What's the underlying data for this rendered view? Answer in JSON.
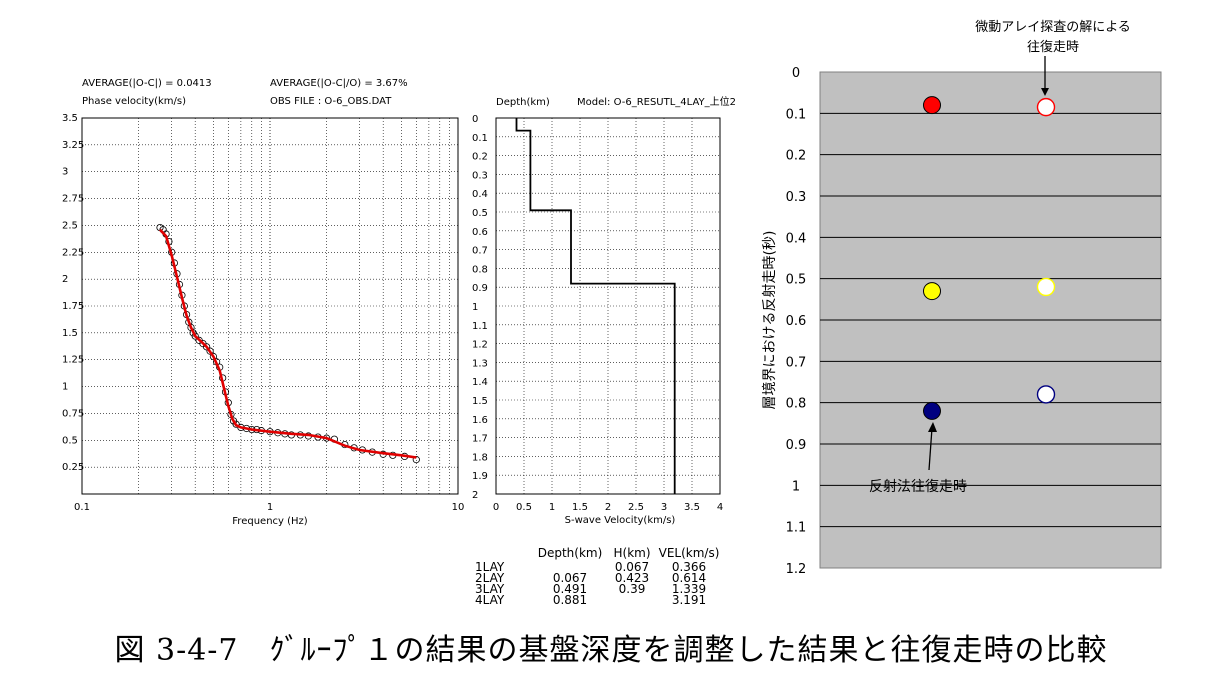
{
  "caption": "図 3-4-7　ｸﾞﾙｰﾌﾟ１の結果の基盤深度を調整した結果と往復走時の比較",
  "colors": {
    "fit_line": "#e00000",
    "plot_bg": "#c0c0c0",
    "red": "#ff0000",
    "yellow": "#ffff00",
    "navy": "#000080"
  },
  "chart_data": [
    {
      "type": "scatter",
      "header": {
        "avg_abs": "AVERAGE(|O-C|) = 0.0413",
        "avg_rel": "AVERAGE(|O-C|/O) = 3.67%",
        "ylabel": "Phase velocity(km/s)",
        "obs_file": "OBS FILE : O-6_OBS.DAT"
      },
      "xlabel": "Frequency (Hz)",
      "xscale": "log",
      "xlim": [
        0.1,
        10
      ],
      "ylim": [
        0,
        3.5
      ],
      "x_ticks": [
        "0.1",
        "1",
        "10"
      ],
      "y_ticks": [
        "3.5",
        "3.25",
        "3",
        "2.75",
        "2.5",
        "2.25",
        "2",
        "1.75",
        "1.5",
        "1.25",
        "1",
        "0.75",
        "0.5",
        "0.25"
      ],
      "series": [
        {
          "x": [
            0.26,
            0.27,
            0.28,
            0.29,
            0.3,
            0.31,
            0.32,
            0.33,
            0.34,
            0.35,
            0.36,
            0.37,
            0.38,
            0.39,
            0.4,
            0.42,
            0.44,
            0.46,
            0.48,
            0.5,
            0.52,
            0.54,
            0.56,
            0.58,
            0.6,
            0.62,
            0.64,
            0.66,
            0.7,
            0.75,
            0.8,
            0.85,
            0.9,
            1.0,
            1.1,
            1.2,
            1.3,
            1.45,
            1.6,
            1.8,
            2.0,
            2.2,
            2.5,
            2.8,
            3.1,
            3.5,
            4.0,
            4.5,
            5.2,
            6.0
          ],
          "y": [
            2.48,
            2.46,
            2.42,
            2.35,
            2.25,
            2.15,
            2.05,
            1.95,
            1.85,
            1.75,
            1.67,
            1.6,
            1.55,
            1.5,
            1.47,
            1.43,
            1.4,
            1.37,
            1.33,
            1.28,
            1.23,
            1.18,
            1.08,
            0.95,
            0.85,
            0.74,
            0.68,
            0.65,
            0.62,
            0.61,
            0.6,
            0.6,
            0.59,
            0.58,
            0.57,
            0.56,
            0.55,
            0.55,
            0.54,
            0.53,
            0.52,
            0.51,
            0.46,
            0.43,
            0.41,
            0.39,
            0.37,
            0.36,
            0.35,
            0.32
          ]
        },
        {
          "x": [
            0.26,
            0.28,
            0.3,
            0.32,
            0.34,
            0.36,
            0.38,
            0.4,
            0.43,
            0.46,
            0.5,
            0.54,
            0.57,
            0.6,
            0.63,
            0.66,
            0.7,
            0.8,
            1.0,
            1.3,
            1.6,
            2.0,
            2.5,
            3.0,
            4.0,
            5.0,
            6.0
          ],
          "y": [
            2.46,
            2.4,
            2.22,
            2.02,
            1.83,
            1.66,
            1.55,
            1.47,
            1.42,
            1.37,
            1.28,
            1.15,
            0.98,
            0.82,
            0.7,
            0.64,
            0.62,
            0.6,
            0.58,
            0.56,
            0.55,
            0.52,
            0.45,
            0.41,
            0.38,
            0.36,
            0.34
          ]
        }
      ]
    },
    {
      "type": "line",
      "header": {
        "ylabel": "Depth(km)",
        "model": "Model: O-6_RESUTL_4LAY_上位2"
      },
      "xlabel": "S-wave Velocity(km/s)",
      "xlim": [
        0,
        4
      ],
      "ylim": [
        0,
        2
      ],
      "x_ticks": [
        "0",
        "0.5",
        "1",
        "1.5",
        "2",
        "2.5",
        "3",
        "3.5",
        "4"
      ],
      "y_ticks": [
        "0",
        "0.1",
        "0.2",
        "0.3",
        "0.4",
        "0.5",
        "0.6",
        "0.7",
        "0.8",
        "0.9",
        "1",
        "1.1",
        "1.2",
        "1.3",
        "1.4",
        "1.5",
        "1.6",
        "1.7",
        "1.8",
        "1.9",
        "2"
      ],
      "profile": [
        {
          "vel": 0.366,
          "top": 0,
          "bottom": 0.067
        },
        {
          "vel": 0.614,
          "top": 0.067,
          "bottom": 0.491
        },
        {
          "vel": 1.339,
          "top": 0.491,
          "bottom": 0.881
        },
        {
          "vel": 3.191,
          "top": 0.881,
          "bottom": 2
        }
      ]
    },
    {
      "type": "table",
      "columns": [
        "",
        "Depth(km)",
        "H(km)",
        "VEL(km/s)"
      ],
      "rows": [
        [
          "1LAY",
          "",
          "0.067",
          "0.366"
        ],
        [
          "2LAY",
          "0.067",
          "0.423",
          "0.614"
        ],
        [
          "3LAY",
          "0.491",
          "0.39",
          "1.339"
        ],
        [
          "4LAY",
          "0.881",
          "",
          "3.191"
        ]
      ]
    },
    {
      "type": "scatter",
      "ylabel": "層境界における反射走時(秒)",
      "ylim": [
        0,
        1.2
      ],
      "y_ticks": [
        "0",
        "0.1",
        "0.2",
        "0.3",
        "0.4",
        "0.5",
        "0.6",
        "0.7",
        "0.8",
        "0.9",
        "1",
        "1.1",
        "1.2"
      ],
      "annotations": {
        "top": [
          "微動アレイ探査の解による",
          "往復走時"
        ],
        "bottom": "反射法往復走時"
      },
      "series": [
        {
          "fills": [
            "#ff0000",
            "#ffff00",
            "#000080"
          ],
          "y": [
            0.08,
            0.53,
            0.82
          ]
        },
        {
          "fills": [
            "#ffffff",
            "#ffffff",
            "#ffffff"
          ],
          "strokes": [
            "#ff0000",
            "#ffff00",
            "#000080"
          ],
          "y": [
            0.085,
            0.52,
            0.78
          ]
        }
      ]
    }
  ]
}
